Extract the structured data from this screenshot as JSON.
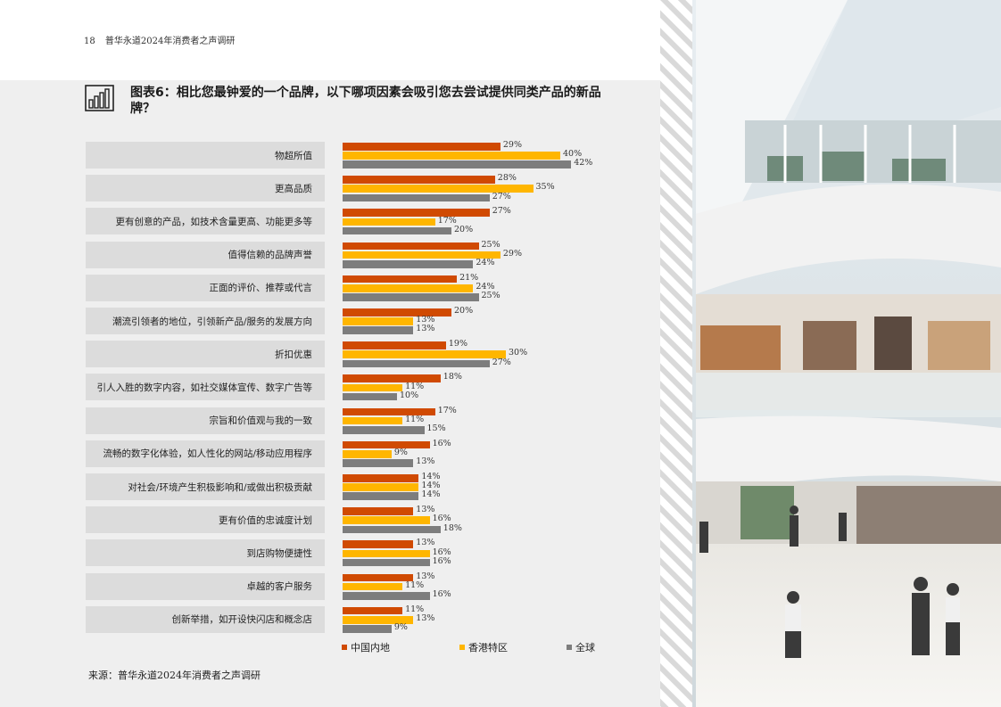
{
  "header": {
    "page_number": "18",
    "report_title": "普华永道2024年消费者之声调研"
  },
  "title": "图表6：相比您最钟爱的一个品牌，以下哪项因素会吸引您去尝试提供同类产品的新品牌？",
  "icon": "bar-chart-icon",
  "colors": {
    "mainland": "#d04a02",
    "hongkong": "#ffb600",
    "global": "#7d7d7d"
  },
  "source": "来源：普华永道2024年消费者之声调研",
  "chart_data": {
    "type": "bar",
    "orientation": "horizontal",
    "title": "图表6：相比您最钟爱的一个品牌，以下哪项因素会吸引您去尝试提供同类产品的新品牌？",
    "categories": [
      "物超所值",
      "更高品质",
      "更有创意的产品，如技术含量更高、功能更多等",
      "值得信赖的品牌声誉",
      "正面的评价、推荐或代言",
      "潮流引领者的地位，引领新产品/服务的发展方向",
      "折扣优惠",
      "引人入胜的数字内容，如社交媒体宣传、数字广告等",
      "宗旨和价值观与我的一致",
      "流畅的数字化体验，如人性化的网站/移动应用程序",
      "对社会/环境产生积极影响和/或做出积极贡献",
      "更有价值的忠诚度计划",
      "到店购物便捷性",
      "卓越的客户服务",
      "创新举措，如开设快闪店和概念店"
    ],
    "series": [
      {
        "name": "中国内地",
        "color": "#d04a02",
        "values": [
          29,
          28,
          27,
          25,
          21,
          20,
          19,
          18,
          17,
          16,
          14,
          13,
          13,
          13,
          11
        ]
      },
      {
        "name": "香港特区",
        "color": "#ffb600",
        "values": [
          40,
          35,
          17,
          29,
          24,
          13,
          30,
          11,
          11,
          9,
          14,
          16,
          16,
          11,
          13
        ]
      },
      {
        "name": "全球",
        "color": "#7d7d7d",
        "values": [
          42,
          27,
          20,
          24,
          25,
          13,
          27,
          10,
          15,
          13,
          14,
          18,
          16,
          16,
          9
        ]
      }
    ],
    "value_suffix": "%",
    "legend_position": "bottom"
  }
}
